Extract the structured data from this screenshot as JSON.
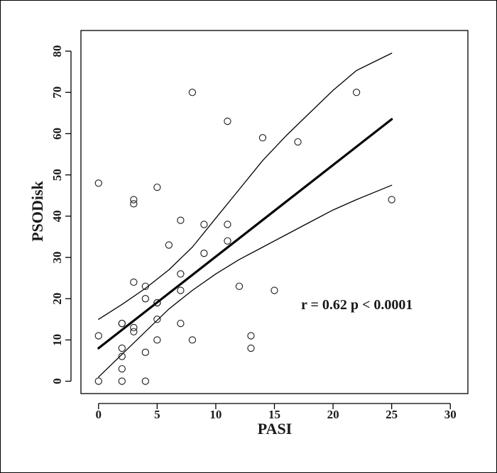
{
  "chart_data": {
    "type": "scatter",
    "title": "",
    "xlabel": "PASI",
    "ylabel": "PSODisk",
    "xlim": [
      -1.5,
      31.5
    ],
    "ylim": [
      -3,
      85
    ],
    "xticks": [
      0,
      5,
      10,
      15,
      20,
      25,
      30
    ],
    "yticks": [
      0,
      10,
      20,
      30,
      40,
      50,
      60,
      70,
      80
    ],
    "grid": false,
    "legend": "none",
    "annotation": {
      "text": "r = 0.62   p < 0.0001",
      "x": 14,
      "y": 18
    },
    "series": [
      {
        "kind": "points",
        "marker": "open-circle",
        "x": [
          0,
          0,
          0,
          2,
          2,
          2,
          2,
          2,
          2,
          3,
          3,
          3,
          3,
          3,
          4,
          4,
          4,
          4,
          5,
          5,
          5,
          5,
          5,
          6,
          7,
          7,
          7,
          7,
          8,
          8,
          9,
          9,
          11,
          11,
          11,
          12,
          13,
          13,
          14,
          15,
          17,
          22,
          25
        ],
        "y": [
          0,
          11,
          48,
          0,
          3,
          6,
          8,
          14,
          14,
          12,
          13,
          24,
          43,
          44,
          0,
          7,
          20,
          23,
          10,
          15,
          19,
          47,
          19,
          33,
          14,
          22,
          26,
          39,
          10,
          70,
          31,
          38,
          34,
          38,
          63,
          23,
          8,
          11,
          59,
          22,
          58,
          70,
          44
        ]
      },
      {
        "kind": "regression-line",
        "x": [
          0,
          25
        ],
        "y": [
          8,
          63.5
        ]
      },
      {
        "kind": "upper-confidence-band",
        "x": [
          0,
          2,
          4,
          6,
          8,
          10,
          12,
          14,
          16,
          18,
          20,
          22,
          25
        ],
        "y": [
          15,
          18.6,
          22.5,
          27,
          32.5,
          39.5,
          46.5,
          53.5,
          59.5,
          65,
          70.5,
          75.3,
          79.5
        ]
      },
      {
        "kind": "lower-confidence-band",
        "x": [
          0,
          2,
          4,
          6,
          8,
          10,
          12,
          14,
          16,
          18,
          20,
          22,
          25
        ],
        "y": [
          1,
          6.5,
          12,
          17.5,
          22,
          26,
          29.5,
          32.5,
          35.5,
          38.5,
          41.5,
          44,
          47.5
        ]
      }
    ]
  }
}
